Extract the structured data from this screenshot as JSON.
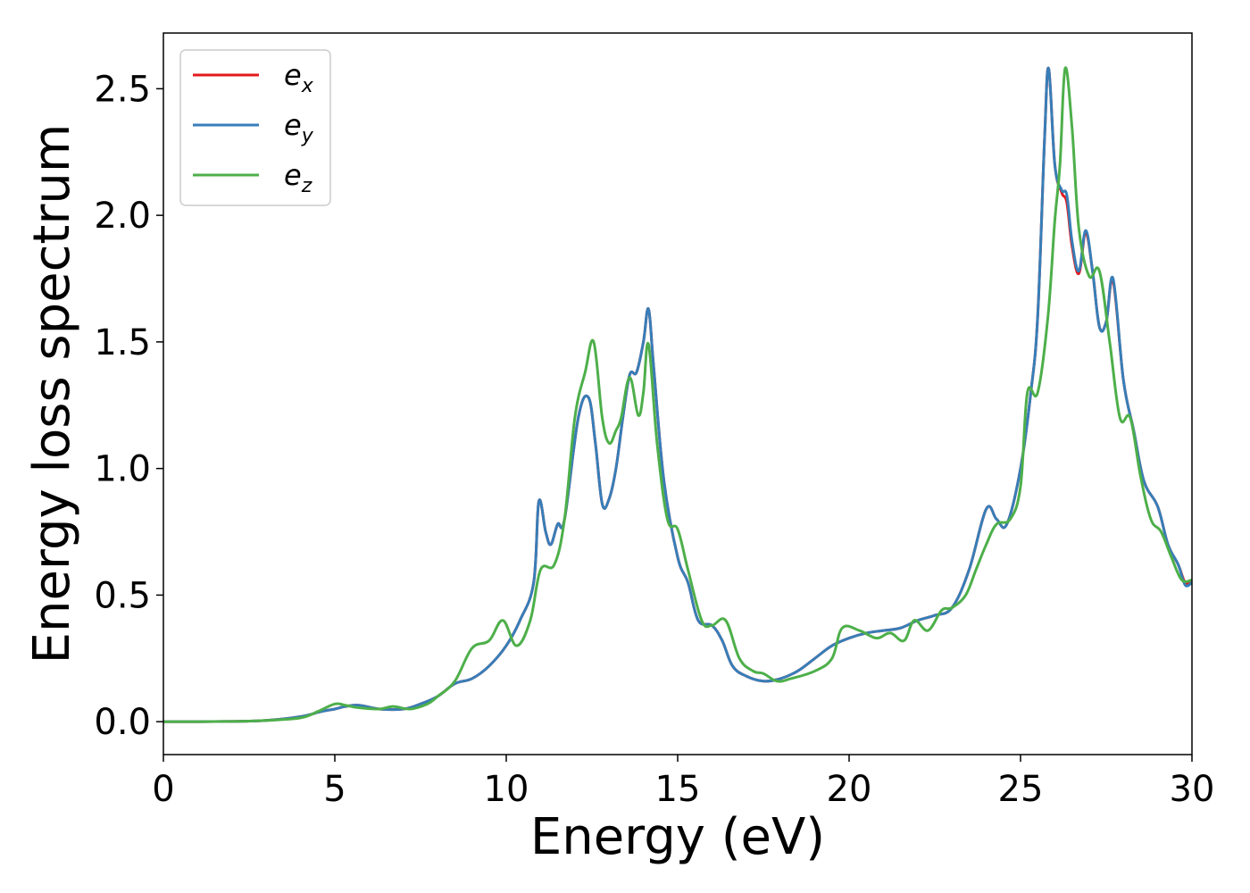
{
  "chart_data": {
    "type": "line",
    "xlabel": "Energy (eV)",
    "ylabel": "Energy loss spectrum",
    "xlim": [
      0,
      30
    ],
    "ylim": [
      -0.13,
      2.72
    ],
    "xticks": [
      0,
      5,
      10,
      15,
      20,
      25,
      30
    ],
    "xtick_labels": [
      "0",
      "5",
      "10",
      "15",
      "20",
      "25",
      "30"
    ],
    "yticks": [
      0.0,
      0.5,
      1.0,
      1.5,
      2.0,
      2.5
    ],
    "ytick_labels": [
      "0.0",
      "0.5",
      "1.0",
      "1.5",
      "2.0",
      "2.5"
    ],
    "grid": false,
    "legend_position": "top-left",
    "series": [
      {
        "name": "e_x",
        "legend_base": "e",
        "legend_sub": "x",
        "color": "#e41a1c",
        "x": [
          0,
          2,
          3,
          4,
          4.6,
          5,
          5.3,
          5.7,
          6.3,
          7,
          7.5,
          8,
          8.5,
          9,
          9.5,
          10,
          10.4,
          10.8,
          10.95,
          11.15,
          11.3,
          11.5,
          11.7,
          12.1,
          12.4,
          12.6,
          12.8,
          13,
          13.2,
          13.4,
          13.6,
          13.8,
          14,
          14.15,
          14.3,
          14.6,
          15,
          15.3,
          15.6,
          16,
          16.3,
          16.6,
          17,
          17.5,
          18,
          18.5,
          19,
          19.5,
          20,
          20.5,
          21,
          21.5,
          22,
          22.5,
          23,
          23.5,
          24,
          24.3,
          24.6,
          25,
          25.3,
          25.5,
          25.7,
          25.82,
          26,
          26.2,
          26.35,
          26.5,
          26.7,
          26.9,
          27.1,
          27.3,
          27.5,
          27.7,
          28,
          28.3,
          28.6,
          29,
          29.3,
          29.6,
          29.8,
          30
        ],
        "values": [
          0,
          0.001,
          0.005,
          0.02,
          0.04,
          0.05,
          0.06,
          0.065,
          0.05,
          0.05,
          0.07,
          0.1,
          0.15,
          0.17,
          0.22,
          0.3,
          0.4,
          0.55,
          0.87,
          0.75,
          0.7,
          0.78,
          0.8,
          1.2,
          1.28,
          1.1,
          0.86,
          0.88,
          1.0,
          1.2,
          1.37,
          1.38,
          1.5,
          1.63,
          1.4,
          0.95,
          0.65,
          0.55,
          0.4,
          0.38,
          0.32,
          0.22,
          0.18,
          0.16,
          0.17,
          0.2,
          0.25,
          0.3,
          0.33,
          0.35,
          0.36,
          0.37,
          0.4,
          0.42,
          0.45,
          0.6,
          0.84,
          0.8,
          0.78,
          1.0,
          1.3,
          1.6,
          2.3,
          2.58,
          2.2,
          2.09,
          2.05,
          1.88,
          1.77,
          1.93,
          1.78,
          1.56,
          1.58,
          1.74,
          1.35,
          1.15,
          0.95,
          0.85,
          0.7,
          0.62,
          0.55,
          0.55
        ]
      },
      {
        "name": "e_y",
        "legend_base": "e",
        "legend_sub": "y",
        "color": "#377eb8",
        "x": [
          0,
          2,
          3,
          4,
          4.6,
          5,
          5.3,
          5.7,
          6.3,
          7,
          7.5,
          8,
          8.5,
          9,
          9.5,
          10,
          10.4,
          10.8,
          10.95,
          11.15,
          11.3,
          11.5,
          11.7,
          12.1,
          12.4,
          12.6,
          12.8,
          13,
          13.2,
          13.4,
          13.6,
          13.8,
          14,
          14.15,
          14.3,
          14.6,
          15,
          15.3,
          15.6,
          16,
          16.3,
          16.6,
          17,
          17.5,
          18,
          18.5,
          19,
          19.5,
          20,
          20.5,
          21,
          21.5,
          22,
          22.5,
          23,
          23.5,
          24,
          24.3,
          24.6,
          25,
          25.3,
          25.5,
          25.7,
          25.82,
          26,
          26.2,
          26.35,
          26.5,
          26.7,
          26.9,
          27.1,
          27.3,
          27.5,
          27.7,
          28,
          28.3,
          28.6,
          29,
          29.3,
          29.6,
          29.8,
          30
        ],
        "values": [
          0,
          0.001,
          0.005,
          0.02,
          0.04,
          0.05,
          0.06,
          0.065,
          0.05,
          0.05,
          0.07,
          0.1,
          0.15,
          0.17,
          0.22,
          0.3,
          0.4,
          0.55,
          0.87,
          0.75,
          0.7,
          0.78,
          0.8,
          1.2,
          1.28,
          1.1,
          0.86,
          0.88,
          1.0,
          1.2,
          1.37,
          1.38,
          1.5,
          1.63,
          1.4,
          0.95,
          0.65,
          0.55,
          0.4,
          0.38,
          0.32,
          0.22,
          0.18,
          0.16,
          0.17,
          0.2,
          0.25,
          0.3,
          0.33,
          0.35,
          0.36,
          0.37,
          0.4,
          0.42,
          0.45,
          0.6,
          0.84,
          0.8,
          0.78,
          1.0,
          1.3,
          1.6,
          2.3,
          2.58,
          2.2,
          2.1,
          2.08,
          1.9,
          1.78,
          1.94,
          1.78,
          1.56,
          1.58,
          1.75,
          1.35,
          1.15,
          0.95,
          0.85,
          0.7,
          0.62,
          0.54,
          0.55
        ]
      },
      {
        "name": "e_z",
        "legend_base": "e",
        "legend_sub": "z",
        "color": "#4daf4a",
        "x": [
          0,
          2,
          3,
          4,
          4.5,
          5,
          5.3,
          5.7,
          6.3,
          6.7,
          7.2,
          7.7,
          8,
          8.5,
          9,
          9.5,
          9.9,
          10.3,
          10.7,
          11,
          11.4,
          11.7,
          12,
          12.3,
          12.55,
          12.8,
          13,
          13.2,
          13.35,
          13.6,
          13.85,
          14,
          14.15,
          14.4,
          14.7,
          15,
          15.3,
          15.7,
          16,
          16.4,
          16.8,
          17.2,
          17.5,
          17.9,
          18.3,
          19,
          19.5,
          19.8,
          20.3,
          20.8,
          21.2,
          21.6,
          21.9,
          22.3,
          22.7,
          23,
          23.4,
          23.7,
          24,
          24.3,
          24.7,
          25,
          25.2,
          25.5,
          25.8,
          26,
          26.15,
          26.3,
          26.5,
          26.7,
          27,
          27.3,
          27.6,
          27.9,
          28.2,
          28.5,
          28.8,
          29.1,
          29.4,
          29.7,
          30
        ],
        "values": [
          0,
          0.001,
          0.005,
          0.015,
          0.04,
          0.07,
          0.065,
          0.055,
          0.05,
          0.06,
          0.05,
          0.07,
          0.1,
          0.16,
          0.29,
          0.32,
          0.4,
          0.3,
          0.4,
          0.6,
          0.62,
          0.8,
          1.2,
          1.38,
          1.5,
          1.2,
          1.1,
          1.15,
          1.2,
          1.36,
          1.21,
          1.3,
          1.49,
          1.1,
          0.8,
          0.76,
          0.6,
          0.4,
          0.38,
          0.4,
          0.25,
          0.2,
          0.19,
          0.16,
          0.17,
          0.2,
          0.25,
          0.37,
          0.36,
          0.33,
          0.35,
          0.32,
          0.4,
          0.36,
          0.44,
          0.45,
          0.5,
          0.6,
          0.7,
          0.78,
          0.8,
          0.93,
          1.3,
          1.3,
          1.6,
          1.98,
          2.2,
          2.58,
          2.35,
          1.95,
          1.76,
          1.78,
          1.5,
          1.2,
          1.2,
          0.97,
          0.8,
          0.75,
          0.65,
          0.56,
          0.56
        ]
      }
    ]
  }
}
